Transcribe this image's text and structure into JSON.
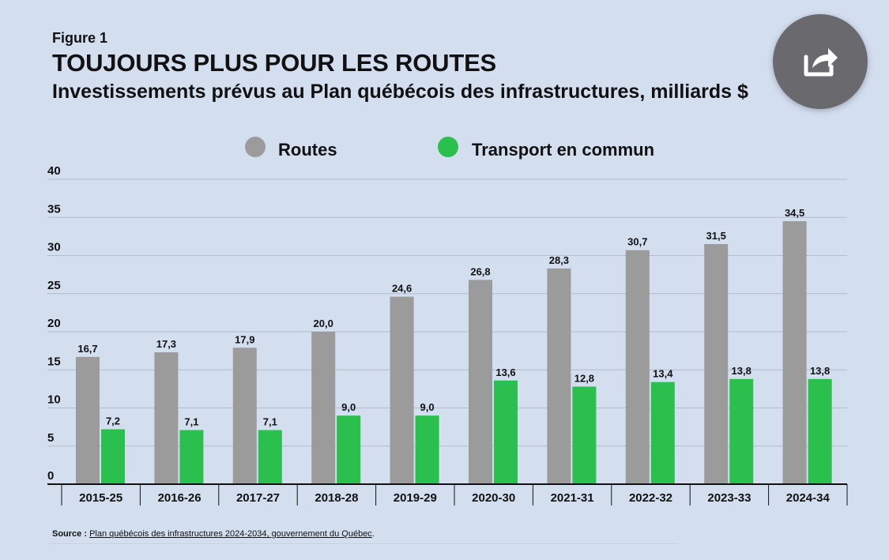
{
  "header": {
    "figure_label": "Figure 1",
    "title": "TOUJOURS PLUS POUR LES ROUTES",
    "subtitle": "Investissements prévus au Plan québécois des infrastructures, milliards $"
  },
  "share": {
    "icon": "share-icon"
  },
  "footer": {
    "source_label": "Source :",
    "source_link": "Plan québécois des infrastructures 2024-2034, gouvernement du Québec",
    "source_end": "."
  },
  "chart_data": {
    "type": "bar",
    "categories": [
      "2015-25",
      "2016-26",
      "2017-27",
      "2018-28",
      "2019-29",
      "2020-30",
      "2021-31",
      "2022-32",
      "2023-33",
      "2024-34"
    ],
    "series": [
      {
        "name": "Routes",
        "color": "#9b9b9b",
        "values": [
          16.7,
          17.3,
          17.9,
          20.0,
          24.6,
          26.8,
          28.3,
          30.7,
          31.5,
          34.5
        ],
        "labels": [
          "16,7",
          "17,3",
          "17,9",
          "20,0",
          "24,6",
          "26,8",
          "28,3",
          "30,7",
          "31,5",
          "34,5"
        ]
      },
      {
        "name": "Transport en commun",
        "color": "#2bbf4e",
        "values": [
          7.2,
          7.1,
          7.1,
          9.0,
          9.0,
          13.6,
          12.8,
          13.4,
          13.8,
          13.8
        ],
        "labels": [
          "7,2",
          "7,1",
          "7,1",
          "9,0",
          "9,0",
          "13,6",
          "12,8",
          "13,4",
          "13,8",
          "13,8"
        ]
      }
    ],
    "yticks": [
      "0",
      "5",
      "10",
      "15",
      "20",
      "25",
      "30",
      "35",
      "40"
    ],
    "ylim": [
      0,
      40
    ],
    "grid": true,
    "legend": "top-center"
  }
}
